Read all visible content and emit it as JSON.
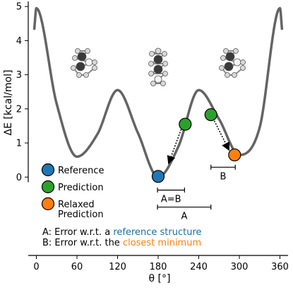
{
  "chart_data": {
    "type": "line",
    "xlabel": "θ [°]",
    "ylabel": "ΔE [kcal/mol]",
    "xlim": [
      -12,
      372
    ],
    "ylim": [
      -0.15,
      5.15
    ],
    "xticks": [
      0,
      60,
      120,
      180,
      240,
      300,
      360
    ],
    "yticks": [
      0,
      1,
      2,
      3,
      4,
      5
    ],
    "grid": false,
    "curve_color": "#646464",
    "energy_curve": {
      "x": [
        -3,
        0,
        30,
        60,
        90,
        120,
        150,
        180,
        210,
        240,
        270,
        300,
        330,
        360,
        363
      ],
      "y": [
        4.35,
        4.95,
        2.15,
        0.6,
        1.25,
        2.55,
        1.3,
        0.0,
        0.9,
        2.55,
        1.7,
        0.65,
        1.45,
        4.95,
        4.35
      ]
    },
    "points": [
      {
        "name": "Reference",
        "x": 180,
        "y": 0.02,
        "color": "#1f77b4"
      },
      {
        "name": "Prediction",
        "x": 220,
        "y": 1.55,
        "color": "#2ca02c"
      },
      {
        "name": "Prediction",
        "x": 258,
        "y": 1.83,
        "color": "#2ca02c"
      },
      {
        "name": "Relaxed Prediction",
        "x": 293,
        "y": 0.65,
        "color": "#ff7f0e"
      }
    ],
    "arrows": [
      {
        "from": [
          214,
          1.4
        ],
        "to": [
          196,
          0.43
        ]
      },
      {
        "from": [
          263,
          1.65
        ],
        "to": [
          284,
          0.82
        ]
      }
    ],
    "error_bars": [
      {
        "label": "A=B",
        "x1": 179,
        "x2": 219,
        "y": -0.38
      },
      {
        "label": "A",
        "x1": 179,
        "x2": 258,
        "y": -0.88
      },
      {
        "label": "B",
        "x1": 258,
        "x2": 294,
        "y": 0.29
      }
    ],
    "legend": {
      "placement": "left",
      "entries": [
        {
          "label": "Reference",
          "color": "#1f77b4"
        },
        {
          "label": "Prediction",
          "color": "#2ca02c"
        },
        {
          "label": "Relaxed",
          "label2": "Prediction",
          "color": "#ff7f0e"
        }
      ]
    },
    "notes": {
      "line_a_prefix": "A: Error w.r.t. a ",
      "line_a_highlight": "reference structure",
      "line_a_color": "#1a6fa0",
      "line_b_prefix": "B: Error w.r.t. the ",
      "line_b_highlight": "closest minimum",
      "line_b_color": "#ff7f0e"
    },
    "molecule_colors": {
      "carbon": "#3a3a3a",
      "hydrogen": "#d8d8d8",
      "oxygen": "#f4f4f4"
    }
  }
}
